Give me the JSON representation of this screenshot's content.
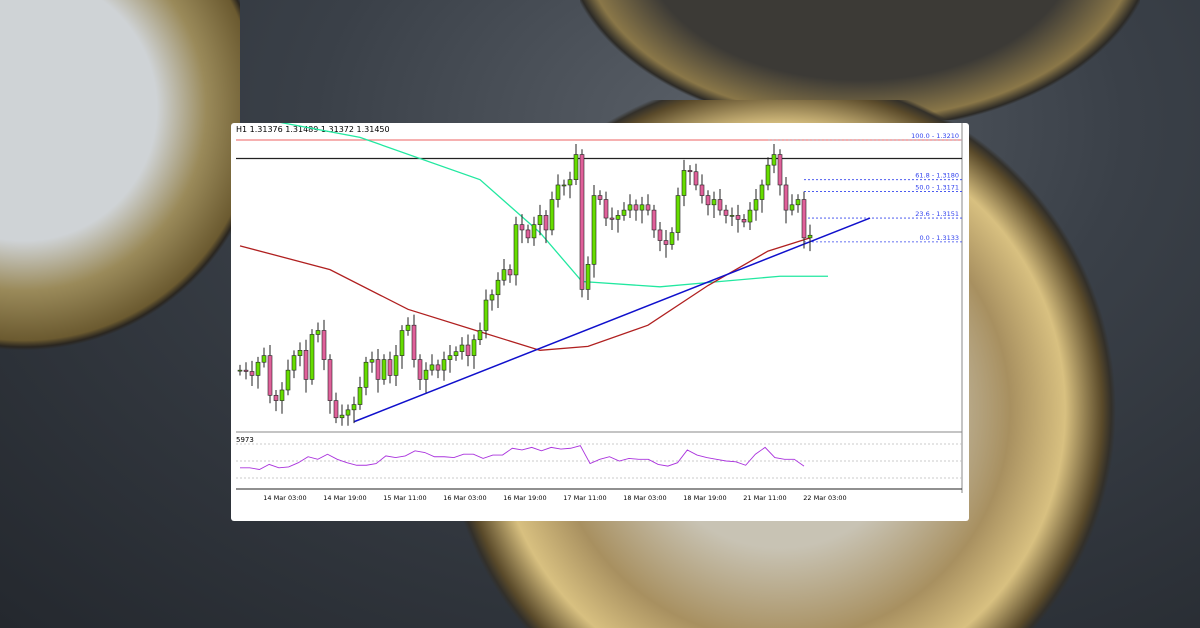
{
  "chart_data": {
    "type": "candlestick",
    "title": "H1 1.31376 1.31489 1.31372 1.31450",
    "closes": [
      1.3036,
      1.3035,
      1.3032,
      1.3042,
      1.3047,
      1.3017,
      1.3013,
      1.3021,
      1.3036,
      1.3047,
      1.3051,
      1.3029,
      1.3063,
      1.3066,
      1.3044,
      1.3013,
      1.3,
      1.3002,
      1.3006,
      1.301,
      1.3023,
      1.3042,
      1.3044,
      1.3029,
      1.3044,
      1.3032,
      1.3047,
      1.3066,
      1.307,
      1.3044,
      1.3029,
      1.3036,
      1.304,
      1.3036,
      1.3044,
      1.3047,
      1.305,
      1.3055,
      1.3047,
      1.3059,
      1.3066,
      1.3089,
      1.3093,
      1.3104,
      1.3112,
      1.3108,
      1.3146,
      1.3142,
      1.3136,
      1.3146,
      1.3153,
      1.3142,
      1.3165,
      1.3176,
      1.3176,
      1.318,
      1.3199,
      1.3097,
      1.3116,
      1.3168,
      1.3165,
      1.3151,
      1.315,
      1.3153,
      1.3157,
      1.3161,
      1.3157,
      1.3161,
      1.3157,
      1.3142,
      1.3134,
      1.3131,
      1.314,
      1.3168,
      1.3187,
      1.3186,
      1.3176,
      1.3168,
      1.3161,
      1.3165,
      1.3157,
      1.3153,
      1.3153,
      1.315,
      1.3148,
      1.3157,
      1.3165,
      1.3176,
      1.3191,
      1.3199,
      1.3176,
      1.3157,
      1.3161,
      1.3165,
      1.3136,
      1.3138
    ],
    "x_ticks": [
      {
        "i": 7,
        "label": "14 Mar 03:00"
      },
      {
        "i": 17,
        "label": "14 Mar 19:00"
      },
      {
        "i": 27,
        "label": "15 Mar 11:00"
      },
      {
        "i": 37,
        "label": "16 Mar 03:00"
      },
      {
        "i": 47,
        "label": "16 Mar 19:00"
      },
      {
        "i": 57,
        "label": "17 Mar 11:00"
      },
      {
        "i": 67,
        "label": "18 Mar 03:00"
      },
      {
        "i": 77,
        "label": "18 Mar 19:00"
      },
      {
        "i": 87,
        "label": "21 Mar 11:00"
      },
      {
        "i": 97,
        "label": "22 Mar 03:00"
      }
    ],
    "ma_green": [
      [
        0,
        1.3229
      ],
      [
        20,
        1.3212
      ],
      [
        40,
        1.318
      ],
      [
        50,
        1.314
      ],
      [
        57,
        1.3103
      ],
      [
        70,
        1.3099
      ],
      [
        80,
        1.3103
      ],
      [
        90,
        1.3107
      ],
      [
        98,
        1.3107
      ]
    ],
    "ma_red": [
      [
        0,
        1.313
      ],
      [
        15,
        1.3112
      ],
      [
        28,
        1.3082
      ],
      [
        40,
        1.3065
      ],
      [
        50,
        1.3051
      ],
      [
        58,
        1.3054
      ],
      [
        68,
        1.307
      ],
      [
        78,
        1.31
      ],
      [
        88,
        1.3126
      ],
      [
        95,
        1.3136
      ]
    ],
    "trendline": [
      [
        19,
        1.2997
      ],
      [
        105,
        1.3151
      ]
    ],
    "horizontal_lines": [
      {
        "price": 1.321,
        "color": "#f08080"
      },
      {
        "price": 1.3196,
        "color": "#222222"
      }
    ],
    "fib_levels": [
      {
        "label": "100.0 - 1.3210",
        "price": 1.321
      },
      {
        "label": "61.8 - 1.3180",
        "price": 1.318
      },
      {
        "label": "50.0 - 1.3171",
        "price": 1.3171
      },
      {
        "label": "23.6 - 1.3151",
        "price": 1.3151
      },
      {
        "label": "0.0 - 1.3133",
        "price": 1.3133
      }
    ],
    "indicator": {
      "label": "5973",
      "levels": [
        70,
        50,
        30
      ],
      "values": [
        42,
        42,
        40,
        46,
        42,
        43,
        48,
        55,
        52,
        58,
        52,
        48,
        45,
        45,
        47,
        56,
        54,
        56,
        62,
        60,
        55,
        55,
        54,
        58,
        58,
        53,
        57,
        57,
        65,
        63,
        66,
        62,
        66,
        64,
        65,
        68,
        47,
        52,
        55,
        50,
        53,
        52,
        52,
        46,
        44,
        48,
        63,
        57,
        54,
        52,
        50,
        49,
        45,
        58,
        66,
        54,
        52,
        52,
        44
      ]
    },
    "colors": {
      "bull": "#66dd00",
      "bear": "#e0609a",
      "wick": "#222222",
      "ma_green": "#22e8a0",
      "ma_red": "#b02020",
      "trend": "#1010cc",
      "fib": "#3344ee",
      "indicator": "#aa33dd"
    }
  }
}
